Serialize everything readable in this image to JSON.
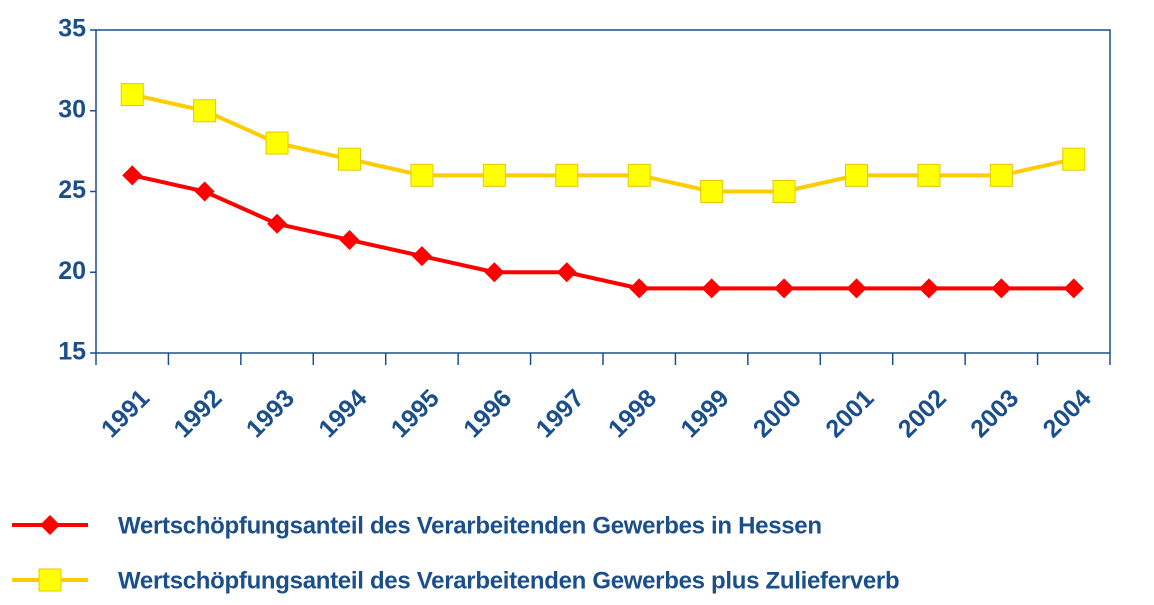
{
  "chart_data": {
    "type": "line",
    "categories": [
      "1991",
      "1992",
      "1993",
      "1994",
      "1995",
      "1996",
      "1997",
      "1998",
      "1999",
      "2000",
      "2001",
      "2002",
      "2003",
      "2004"
    ],
    "series": [
      {
        "name": "Wertschöpfungsanteil des Verarbeitenden Gewerbes in Hessen",
        "color": "#ff0000",
        "marker": "diamond",
        "values": [
          26,
          25,
          23,
          22,
          21,
          20,
          20,
          19,
          19,
          19,
          19,
          19,
          19,
          19
        ]
      },
      {
        "name": "Wertschöpfungsanteil des Verarbeitenden Gewerbes plus Zulieferverb",
        "color": "#ffff00",
        "marker": "square",
        "values": [
          31,
          30,
          28,
          27,
          26,
          26,
          26,
          26,
          25,
          25,
          26,
          26,
          26,
          27
        ]
      }
    ],
    "ylim": [
      15,
      35
    ],
    "yticks": [
      15,
      20,
      25,
      30,
      35
    ],
    "grid": false,
    "legend": "bottom"
  }
}
